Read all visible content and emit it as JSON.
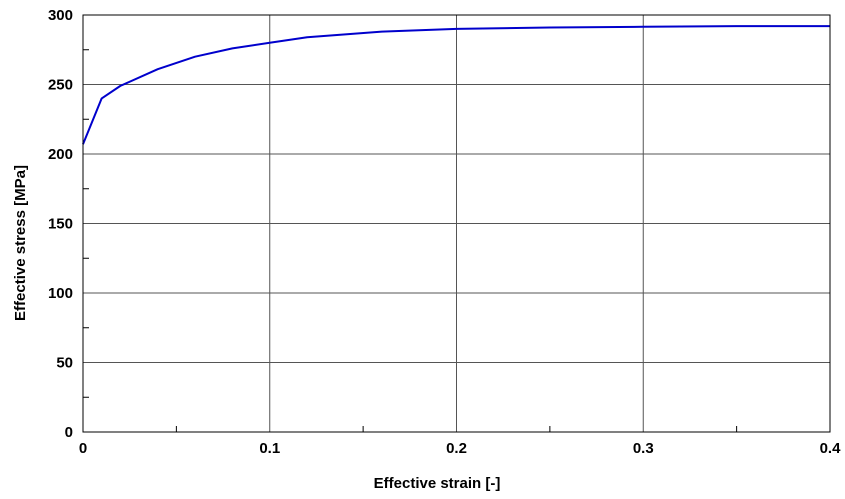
{
  "chart_data": {
    "type": "line",
    "title": "",
    "xlabel": "Effective strain [-]",
    "ylabel": "Effective stress [MPa]",
    "xlim": [
      0,
      0.4
    ],
    "ylim": [
      0,
      300
    ],
    "x_ticks": [
      0,
      0.1,
      0.2,
      0.3,
      0.4
    ],
    "x_tick_labels": [
      "0",
      "0.1",
      "0.2",
      "0.3",
      "0.4"
    ],
    "y_ticks": [
      0,
      50,
      100,
      150,
      200,
      250,
      300
    ],
    "y_tick_labels": [
      "0",
      "50",
      "100",
      "150",
      "200",
      "250",
      "300"
    ],
    "x_minor_ticks": [
      0.05,
      0.15,
      0.25,
      0.35
    ],
    "y_minor_ticks": [
      25,
      75,
      125,
      175,
      225,
      275
    ],
    "grid": true,
    "legend": "none",
    "series": [
      {
        "color": "#0000cc",
        "x": [
          0,
          0.01,
          0.02,
          0.04,
          0.06,
          0.08,
          0.1,
          0.12,
          0.16,
          0.2,
          0.25,
          0.3,
          0.35,
          0.4
        ],
        "y": [
          207,
          240,
          249,
          261,
          270,
          276,
          280,
          284,
          288,
          290,
          291,
          291.5,
          292,
          292
        ]
      }
    ]
  }
}
